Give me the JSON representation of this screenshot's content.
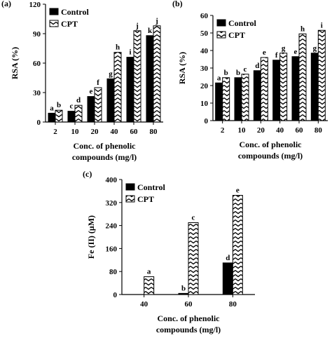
{
  "chart_data": [
    {
      "type": "bar",
      "panel_label": "(a)",
      "categories": [
        "2",
        "10",
        "20",
        "40",
        "60",
        "80"
      ],
      "series": [
        {
          "name": "Control",
          "values": [
            9,
            11,
            26,
            44,
            66,
            88
          ],
          "letters": [
            "a",
            "c",
            "e",
            "g",
            "i",
            "k"
          ],
          "pattern": "solid"
        },
        {
          "name": "CPT",
          "values": [
            12,
            17,
            35,
            71,
            93,
            98
          ],
          "letters": [
            "b",
            "d",
            "f",
            "h",
            "j",
            "j"
          ],
          "pattern": "zigzag"
        }
      ],
      "xlabel": [
        "Conc. of phenolic",
        "compounds  (mg/l)"
      ],
      "ylabel": "RSA (%)",
      "ylim": [
        0,
        120
      ],
      "yticks": [
        0,
        30,
        60,
        90,
        120
      ],
      "legend": "top-left"
    },
    {
      "type": "bar",
      "panel_label": "(b)",
      "categories": [
        "2",
        "10",
        "20",
        "40",
        "60",
        "80"
      ],
      "series": [
        {
          "name": "Control",
          "values": [
            21.5,
            24.5,
            28.5,
            34.5,
            36.5,
            38.5
          ],
          "letters": [
            "a",
            "b",
            "d",
            "f",
            "e",
            "g"
          ],
          "pattern": "solid"
        },
        {
          "name": "CPT",
          "values": [
            24.5,
            26.5,
            36,
            38.5,
            49.5,
            51.5
          ],
          "letters": [
            "b",
            "c",
            "e",
            "g",
            "h",
            "i"
          ],
          "pattern": "zigzag"
        }
      ],
      "xlabel": [
        "Conc. of phenolic",
        "compounds  (mg/l)"
      ],
      "ylabel": "RSA (%)",
      "ylim": [
        0,
        60
      ],
      "yticks": [
        0,
        10,
        20,
        30,
        40,
        50,
        60
      ],
      "legend": "top-left"
    },
    {
      "type": "bar",
      "panel_label": "(c)",
      "categories": [
        "40",
        "60",
        "80"
      ],
      "series": [
        {
          "name": "Control",
          "values": [
            0,
            4,
            110
          ],
          "letters": [
            "",
            "b",
            "d"
          ],
          "pattern": "solid"
        },
        {
          "name": "CPT",
          "values": [
            62,
            250,
            345
          ],
          "letters": [
            "a",
            "c",
            "e"
          ],
          "pattern": "zigzag"
        }
      ],
      "xlabel": [
        "Conc. of phenolic",
        "compounds  (mg/l)"
      ],
      "ylabel": "Fe (II) (μM)",
      "ylim": [
        0,
        400
      ],
      "yticks": [
        0,
        80,
        160,
        240,
        320,
        400
      ],
      "legend": "top-left"
    }
  ]
}
